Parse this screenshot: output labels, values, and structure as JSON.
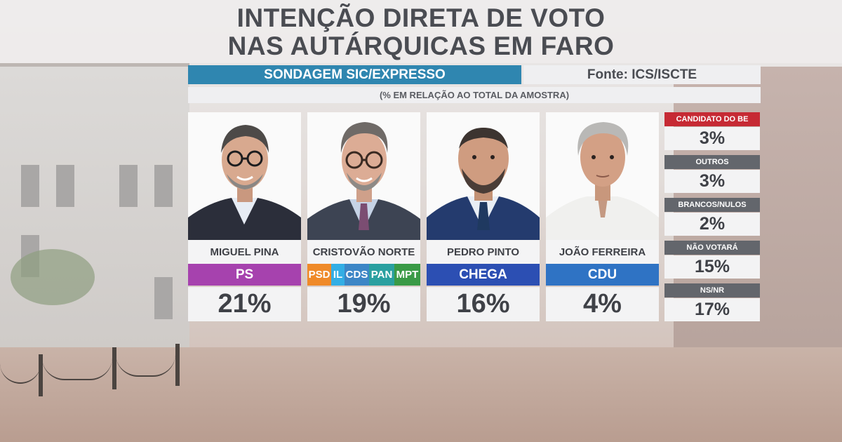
{
  "title": {
    "line1": "INTENÇÃO DIRETA DE VOTO",
    "line2": "NAS AUTÁRQUICAS EM FARO"
  },
  "header": {
    "survey": "SONDAGEM SIC/EXPRESSO",
    "source": "Fonte: ICS/ISCTE",
    "note": "(% EM RELAÇÃO AO TOTAL DA AMOSTRA)"
  },
  "colors": {
    "ps": "#a642ae",
    "psd": "#ef8a29",
    "il": "#33aee5",
    "cds": "#3d86c6",
    "pan": "#2aa0a0",
    "mpt": "#3a9a46",
    "chega": "#2c4fb3",
    "cdu": "#2f73c4",
    "be": "#c62a34",
    "grey": "#63666c",
    "header_blue": "#2f86b0"
  },
  "candidates": [
    {
      "name": "MIGUEL PINA",
      "party": "PS",
      "pct": "21%"
    },
    {
      "name": "CRISTOVÃO NORTE",
      "party": "",
      "coalition": [
        "PSD",
        "IL",
        "CDS",
        "PAN",
        "MPT"
      ],
      "pct": "19%"
    },
    {
      "name": "PEDRO PINTO",
      "party": "CHEGA",
      "pct": "16%"
    },
    {
      "name": "JOÃO FERREIRA",
      "party": "CDU",
      "pct": "4%"
    }
  ],
  "others": [
    {
      "label": "CANDIDATO DO BE",
      "pct": "3%"
    },
    {
      "label": "OUTROS",
      "pct": "3%"
    },
    {
      "label": "BRANCOS/NULOS",
      "pct": "2%"
    },
    {
      "label": "NÃO VOTARÁ",
      "pct": "15%"
    },
    {
      "label": "NS/NR",
      "pct": "17%"
    }
  ],
  "chart_data": {
    "type": "table",
    "title": "INTENÇÃO DIRETA DE VOTO NAS AUTÁRQUICAS EM FARO",
    "categories": [
      "MIGUEL PINA",
      "CRISTOVÃO NORTE",
      "PEDRO PINTO",
      "JOÃO FERREIRA",
      "CANDIDATO DO BE",
      "OUTROS",
      "BRANCOS/NULOS",
      "NÃO VOTARÁ",
      "NS/NR"
    ],
    "values": [
      21,
      19,
      16,
      4,
      3,
      3,
      2,
      15,
      17
    ],
    "parties": [
      "PS",
      "PSD IL CDS PAN MPT",
      "CHEGA",
      "CDU",
      "",
      "",
      "",
      "",
      ""
    ]
  }
}
